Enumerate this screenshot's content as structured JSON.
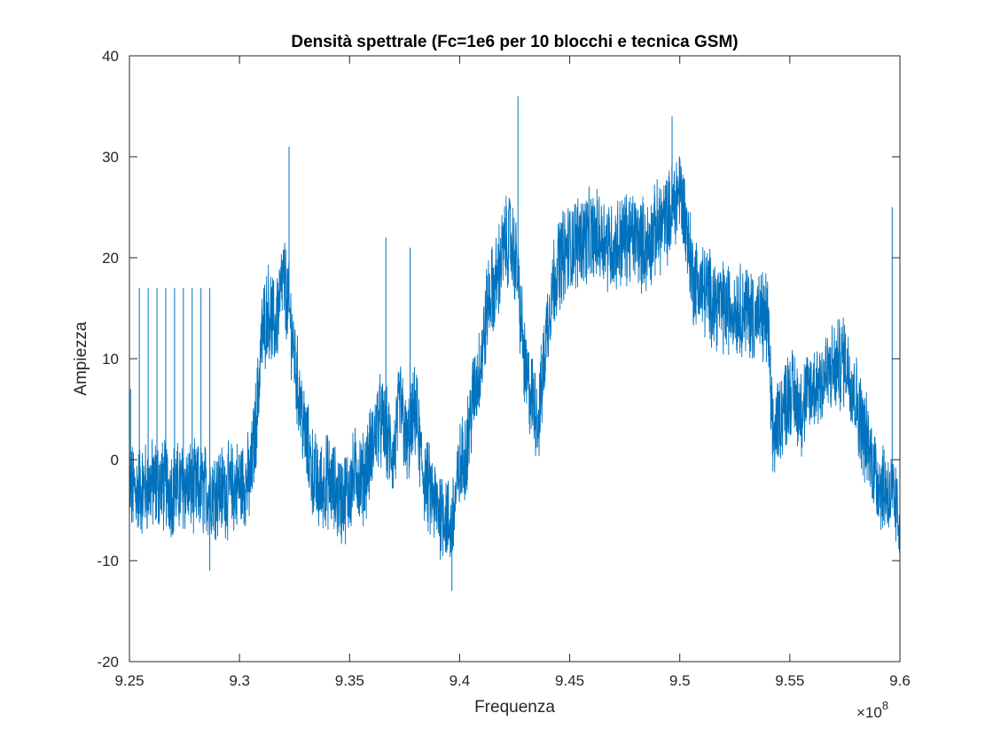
{
  "chart_data": {
    "type": "line",
    "title": "Densità spettrale (Fc=1e6 per 10 blocchi e tecnica GSM)",
    "xlabel": "Frequenza",
    "ylabel": "Ampiezza",
    "x_exponent_label": {
      "times": "×10",
      "power": "8"
    },
    "xlim": [
      9.25,
      9.6
    ],
    "ylim": [
      -20,
      40
    ],
    "x_ticks": [
      9.25,
      9.3,
      9.35,
      9.4,
      9.45,
      9.5,
      9.55,
      9.6
    ],
    "x_tick_labels": [
      "9.25",
      "9.3",
      "9.35",
      "9.4",
      "9.45",
      "9.5",
      "9.55",
      "9.6"
    ],
    "y_ticks": [
      -20,
      -10,
      0,
      10,
      20,
      30,
      40
    ],
    "y_tick_labels": [
      "-20",
      "-10",
      "0",
      "10",
      "20",
      "30",
      "40"
    ],
    "grid": false,
    "line_color": "#0072BD",
    "series": [
      {
        "values_center": {
          "x": [
            9.25,
            9.255,
            9.26,
            9.265,
            9.27,
            9.275,
            9.28,
            9.285,
            9.29,
            9.295,
            9.3,
            9.305,
            9.308,
            9.31,
            9.313,
            9.316,
            9.32,
            9.323,
            9.326,
            9.33,
            9.333,
            9.336,
            9.34,
            9.343,
            9.346,
            9.35,
            9.353,
            9.356,
            9.36,
            9.363,
            9.366,
            9.37,
            9.373,
            9.376,
            9.38,
            9.383,
            9.386,
            9.39,
            9.393,
            9.396,
            9.4,
            9.403,
            9.406,
            9.41,
            9.413,
            9.416,
            9.42,
            9.423,
            9.426,
            9.43,
            9.433,
            9.436,
            9.44,
            9.443,
            9.446,
            9.45,
            9.455,
            9.46,
            9.465,
            9.47,
            9.475,
            9.48,
            9.485,
            9.49,
            9.495,
            9.5,
            9.503,
            9.506,
            9.51,
            9.515,
            9.52,
            9.525,
            9.53,
            9.535,
            9.54,
            9.542,
            9.545,
            9.55,
            9.555,
            9.56,
            9.565,
            9.57,
            9.575,
            9.578,
            9.582,
            9.586,
            9.59,
            9.594,
            9.597,
            9.6
          ],
          "y": [
            -3,
            -3,
            -2.5,
            -2.5,
            -3,
            -2.5,
            -3,
            -3,
            -3,
            -3,
            -2.5,
            -2,
            5,
            12,
            15,
            13,
            18,
            14,
            8,
            2,
            -1,
            -3,
            -2,
            -3,
            -4,
            -3,
            -1,
            -2,
            1,
            4,
            3,
            0,
            6,
            1,
            5,
            -1,
            -3,
            -5,
            -5,
            -7,
            -1,
            1,
            6,
            10,
            16,
            17,
            21,
            22,
            19,
            8,
            6,
            4,
            14,
            18,
            20,
            21,
            22,
            22,
            22,
            21,
            22,
            22,
            21,
            23,
            24,
            27,
            23,
            18,
            17,
            16,
            15,
            15,
            15,
            14,
            14,
            2,
            4,
            7,
            5,
            7,
            8,
            9,
            10,
            8,
            4,
            1,
            -2,
            -3,
            -4,
            -6
          ]
        },
        "noise_amplitude": 4,
        "spikes": [
          {
            "x": 9.2505,
            "y": 7
          },
          {
            "x": 9.2545,
            "y": 17
          },
          {
            "x": 9.2585,
            "y": 17
          },
          {
            "x": 9.2625,
            "y": 17
          },
          {
            "x": 9.2665,
            "y": 17
          },
          {
            "x": 9.2705,
            "y": 17
          },
          {
            "x": 9.2745,
            "y": 17
          },
          {
            "x": 9.2785,
            "y": 17
          },
          {
            "x": 9.2825,
            "y": 17
          },
          {
            "x": 9.2865,
            "y": 17
          },
          {
            "x": 9.3225,
            "y": 31
          },
          {
            "x": 9.3665,
            "y": 22
          },
          {
            "x": 9.3775,
            "y": 21
          },
          {
            "x": 9.4265,
            "y": 36
          },
          {
            "x": 9.4965,
            "y": 34
          },
          {
            "x": 9.5965,
            "y": 25
          },
          {
            "x": 9.3965,
            "y": -13
          },
          {
            "x": 9.2865,
            "y": -11
          }
        ]
      }
    ]
  }
}
